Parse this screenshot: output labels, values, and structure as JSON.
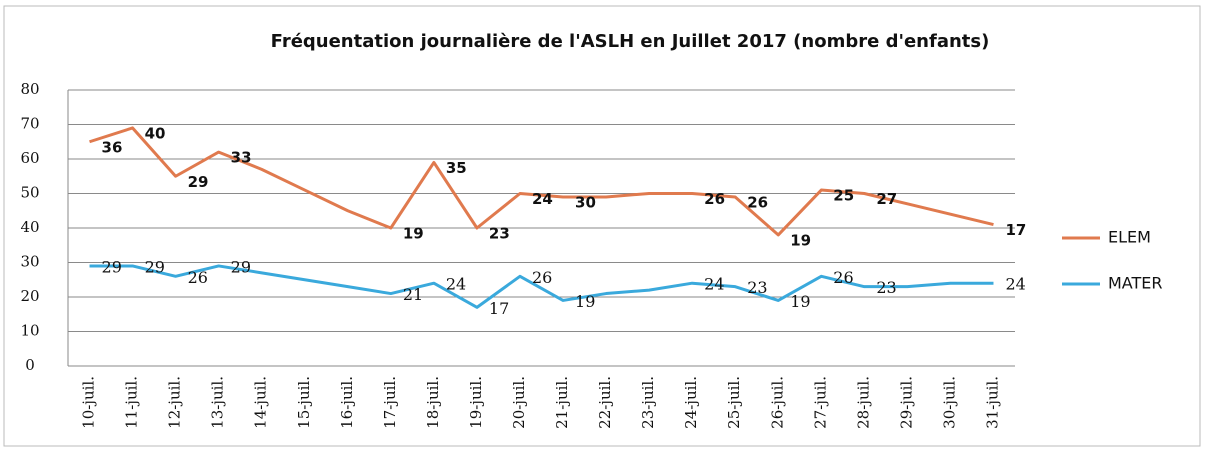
{
  "chart_data": {
    "type": "line",
    "stacked": true,
    "title": "Fréquentation journalière de l'ASLH  en Juillet 2017 (nombre d'enfants)",
    "categories": [
      "10-juil.",
      "11-juil.",
      "12-juil.",
      "13-juil.",
      "14-juil.",
      "15-juil.",
      "16-juil.",
      "17-juil.",
      "18-juil.",
      "19-juil.",
      "20-juil.",
      "21-juil.",
      "22-juil.",
      "23-juil.",
      "24-juil.",
      "25-juil.",
      "26-juil.",
      "27-juil.",
      "28-juil.",
      "29-juil.",
      "30-juil.",
      "31-juil."
    ],
    "series": [
      {
        "name": "MATER",
        "color": "#3aa9dc",
        "values": [
          29,
          29,
          26,
          29,
          27,
          25,
          23,
          21,
          24,
          17,
          26,
          19,
          21,
          22,
          24,
          23,
          19,
          26,
          23,
          23,
          24,
          24
        ],
        "value_labels": [
          29,
          29,
          26,
          29,
          null,
          null,
          null,
          21,
          24,
          17,
          26,
          19,
          null,
          null,
          24,
          23,
          19,
          26,
          23,
          null,
          null,
          24
        ]
      },
      {
        "name": "ELEM",
        "color": "#e07a4e",
        "values": [
          36,
          40,
          29,
          33,
          30,
          26,
          22,
          19,
          35,
          23,
          24,
          30,
          28,
          28,
          26,
          26,
          19,
          25,
          27,
          24,
          20,
          17
        ],
        "value_labels": [
          36,
          40,
          29,
          33,
          null,
          null,
          null,
          19,
          35,
          23,
          24,
          30,
          null,
          null,
          26,
          26,
          19,
          25,
          27,
          null,
          null,
          17
        ]
      }
    ],
    "ylim": [
      0,
      80
    ],
    "yticks": [
      0,
      10,
      20,
      30,
      40,
      50,
      60,
      70,
      80
    ],
    "grid": true,
    "legend": "right"
  }
}
